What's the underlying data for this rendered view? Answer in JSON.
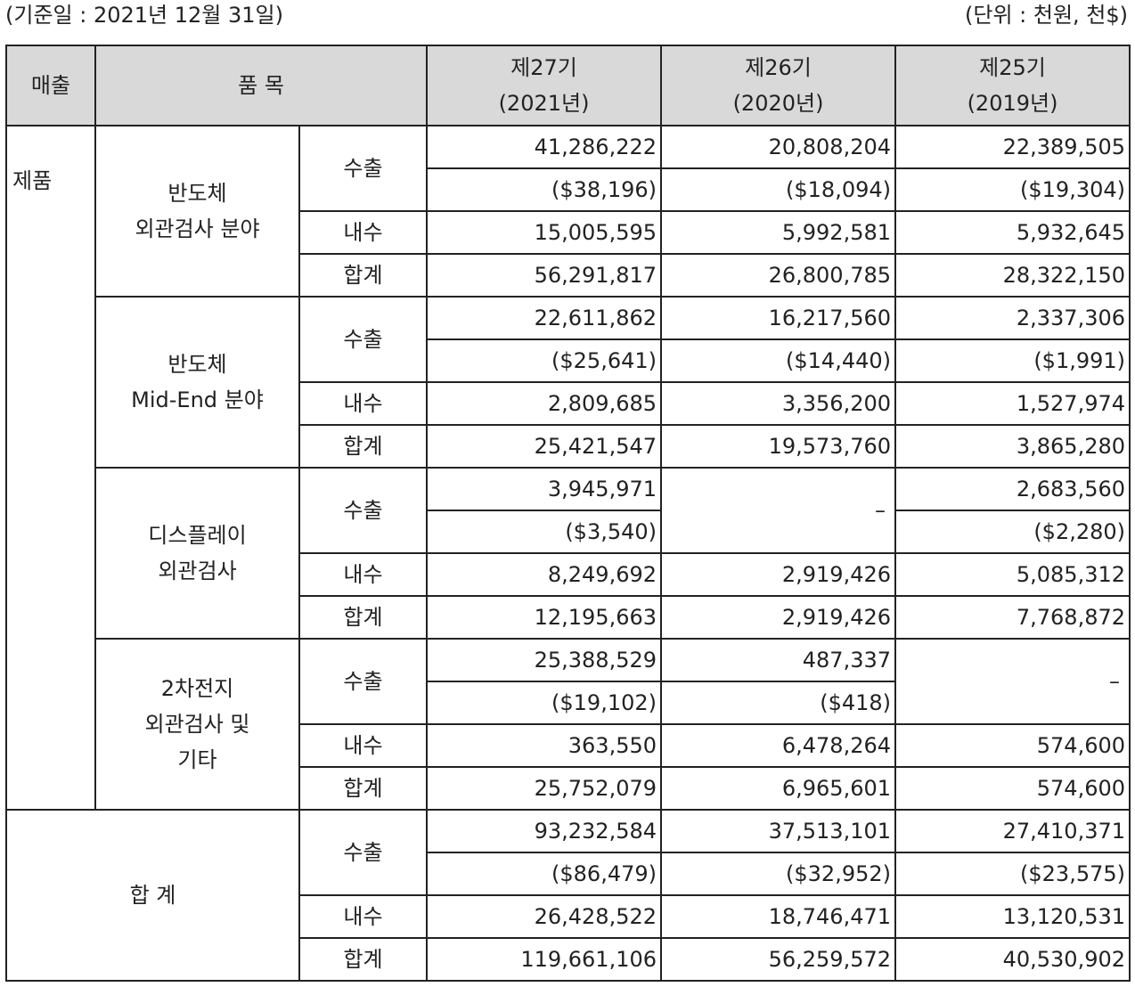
{
  "header": {
    "base_date": "(기준일 : 2021년 12월 31일)",
    "unit": "(단위 : 천원, 천$)"
  },
  "columns": {
    "sales": "매출",
    "item": "품 목",
    "p27": [
      "제27기",
      "(2021년)"
    ],
    "p26": [
      "제26기",
      "(2020년)"
    ],
    "p25": [
      "제25기",
      "(2019년)"
    ]
  },
  "category": "제품",
  "labels": {
    "export": "수출",
    "domestic": "내수",
    "total": "합계"
  },
  "groups": [
    {
      "name_lines": [
        "반도체",
        "외관검사 분야"
      ],
      "export": [
        "41,286,222",
        "20,808,204",
        "22,389,505"
      ],
      "export_usd": [
        "($38,196)",
        "($18,094)",
        "($19,304)"
      ],
      "domestic": [
        "15,005,595",
        "5,992,581",
        "5,932,645"
      ],
      "total": [
        "56,291,817",
        "26,800,785",
        "28,322,150"
      ]
    },
    {
      "name_lines": [
        "반도체",
        "Mid-End 분야"
      ],
      "export": [
        "22,611,862",
        "16,217,560",
        "2,337,306"
      ],
      "export_usd": [
        "($25,641)",
        "($14,440)",
        "($1,991)"
      ],
      "domestic": [
        "2,809,685",
        "3,356,200",
        "1,527,974"
      ],
      "total": [
        "25,421,547",
        "19,573,760",
        "3,865,280"
      ]
    },
    {
      "name_lines": [
        "디스플레이",
        "외관검사"
      ],
      "export": [
        "3,945,971",
        "–",
        "2,683,560"
      ],
      "export_usd": [
        "($3,540)",
        "",
        "($2,280)"
      ],
      "domestic": [
        "8,249,692",
        "2,919,426",
        "5,085,312"
      ],
      "total": [
        "12,195,663",
        "2,919,426",
        "7,768,872"
      ]
    },
    {
      "name_lines": [
        "2차전지",
        "외관검사 및",
        "기타"
      ],
      "export": [
        "25,388,529",
        "487,337",
        "–"
      ],
      "export_usd": [
        "($19,102)",
        "($418)",
        ""
      ],
      "domestic": [
        "363,550",
        "6,478,264",
        "574,600"
      ],
      "total": [
        "25,752,079",
        "6,965,601",
        "574,600"
      ]
    }
  ],
  "grand_total": {
    "label": "합 계",
    "export": [
      "93,232,584",
      "37,513,101",
      "27,410,371"
    ],
    "export_usd": [
      "($86,479)",
      "($32,952)",
      "($23,575)"
    ],
    "domestic": [
      "26,428,522",
      "18,746,471",
      "13,120,531"
    ],
    "total": [
      "119,661,106",
      "56,259,572",
      "40,530,902"
    ]
  }
}
